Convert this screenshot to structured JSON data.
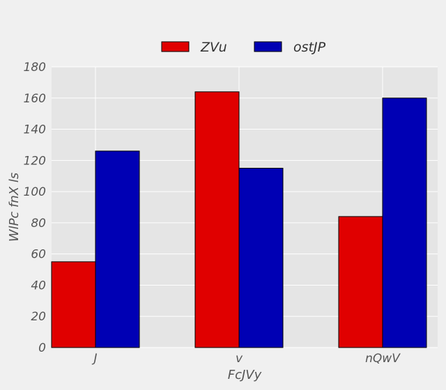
{
  "chart_data": {
    "type": "bar",
    "title": "",
    "xlabel": "FcJVy",
    "ylabel": "WlPc fnX ls",
    "categories": [
      "J",
      "v",
      "nQwV"
    ],
    "series": [
      {
        "name": "ZVu",
        "color": "#e00000",
        "values": [
          55,
          164,
          84
        ]
      },
      {
        "name": "ostJP",
        "color": "#0000b4",
        "values": [
          126,
          115,
          160
        ]
      }
    ],
    "ylim": [
      0,
      180
    ],
    "yticks": [
      0,
      20,
      40,
      60,
      80,
      100,
      120,
      140,
      160,
      180
    ],
    "grid": true,
    "legend_position": "top-center"
  }
}
